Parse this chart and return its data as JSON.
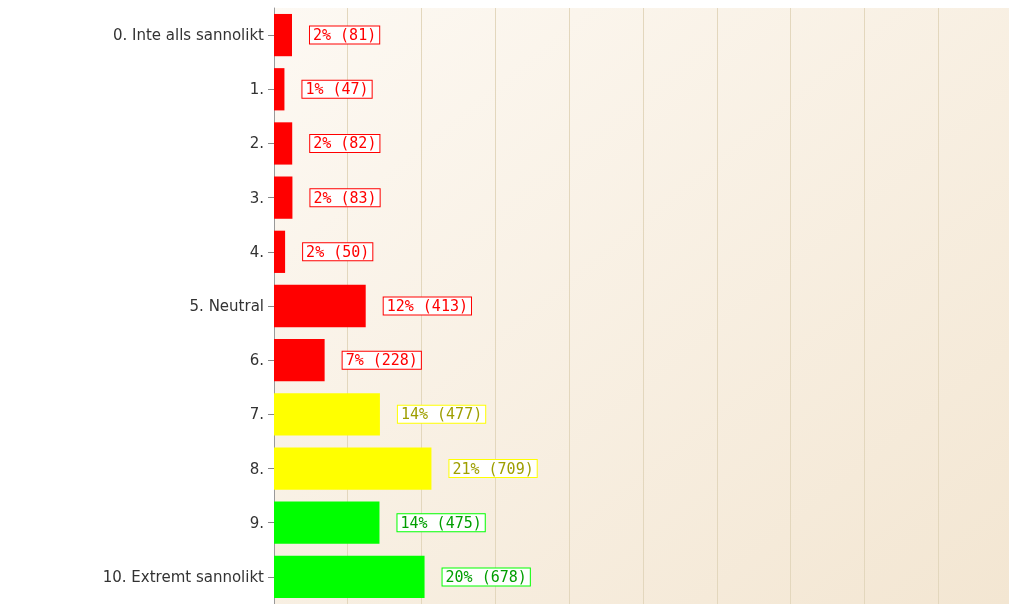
{
  "chart_data": {
    "type": "bar",
    "orientation": "horizontal",
    "categories": [
      "0. Inte alls sannolikt",
      "1.",
      "2.",
      "3.",
      "4.",
      "5. Neutral",
      "6.",
      "7.",
      "8.",
      "9.",
      "10. Extremt sannolikt"
    ],
    "values": [
      81,
      47,
      82,
      83,
      50,
      413,
      228,
      477,
      709,
      475,
      678
    ],
    "value_labels": [
      "2% (81)",
      "1% (47)",
      "2% (82)",
      "2% (83)",
      "2% (50)",
      "12% (413)",
      "7% (228)",
      "14% (477)",
      "21% (709)",
      "14% (475)",
      "20% (678)"
    ],
    "colors": [
      "#ff0000",
      "#ff0000",
      "#ff0000",
      "#ff0000",
      "#ff0000",
      "#ff0000",
      "#ff0000",
      "#ffff00",
      "#ffff00",
      "#00ff00",
      "#00ff00"
    ],
    "xlim": [
      0,
      3310
    ],
    "xticks": [
      {
        "value": 0,
        "label": null
      },
      {
        "value": 332,
        "label": null
      },
      {
        "value": 665,
        "label": null
      },
      {
        "value": 997,
        "label": null
      },
      {
        "value": 1329,
        "label": null
      },
      {
        "value": 1662,
        "label": null
      },
      {
        "value": 1994,
        "label": null
      },
      {
        "value": 2326,
        "label": null
      },
      {
        "value": 2658,
        "label": null
      },
      {
        "value": 2991,
        "label": null
      }
    ],
    "tick_labels": "y",
    "grid": "x"
  }
}
